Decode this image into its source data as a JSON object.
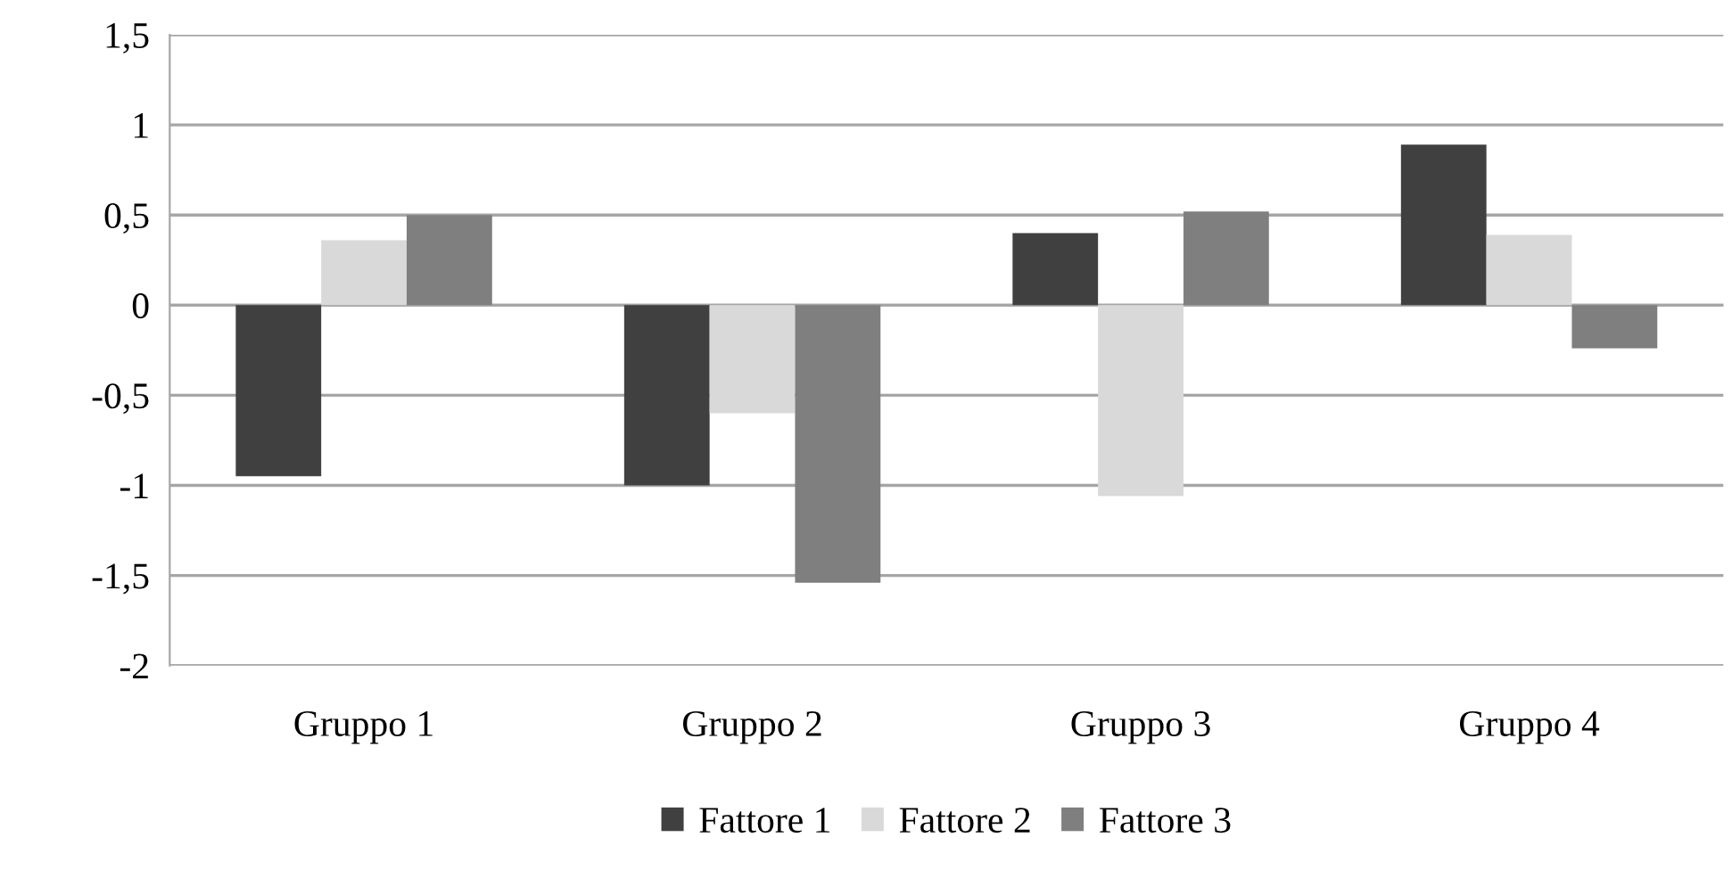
{
  "chart_data": {
    "type": "bar",
    "categories": [
      "Gruppo 1",
      "Gruppo 2",
      "Gruppo 3",
      "Gruppo 4"
    ],
    "series": [
      {
        "name": "Fattore 1",
        "color": "#404040",
        "values": [
          -0.95,
          -1.0,
          0.4,
          0.89
        ]
      },
      {
        "name": "Fattore 2",
        "color": "#d9d9d9",
        "values": [
          0.36,
          -0.6,
          -1.06,
          0.39
        ]
      },
      {
        "name": "Fattore 3",
        "color": "#7f7f7f",
        "values": [
          0.5,
          -1.54,
          0.52,
          -0.24
        ]
      }
    ],
    "ylim": [
      -2,
      1.5
    ],
    "yticks": [
      {
        "value": -2,
        "label": "-2"
      },
      {
        "value": -1.5,
        "label": "-1,5"
      },
      {
        "value": -1,
        "label": "-1"
      },
      {
        "value": -0.5,
        "label": "-0,5"
      },
      {
        "value": 0,
        "label": "0"
      },
      {
        "value": 0.5,
        "label": "0,5"
      },
      {
        "value": 1,
        "label": "1"
      },
      {
        "value": 1.5,
        "label": "1,5"
      }
    ],
    "grid": "y",
    "legend": "bottom"
  }
}
